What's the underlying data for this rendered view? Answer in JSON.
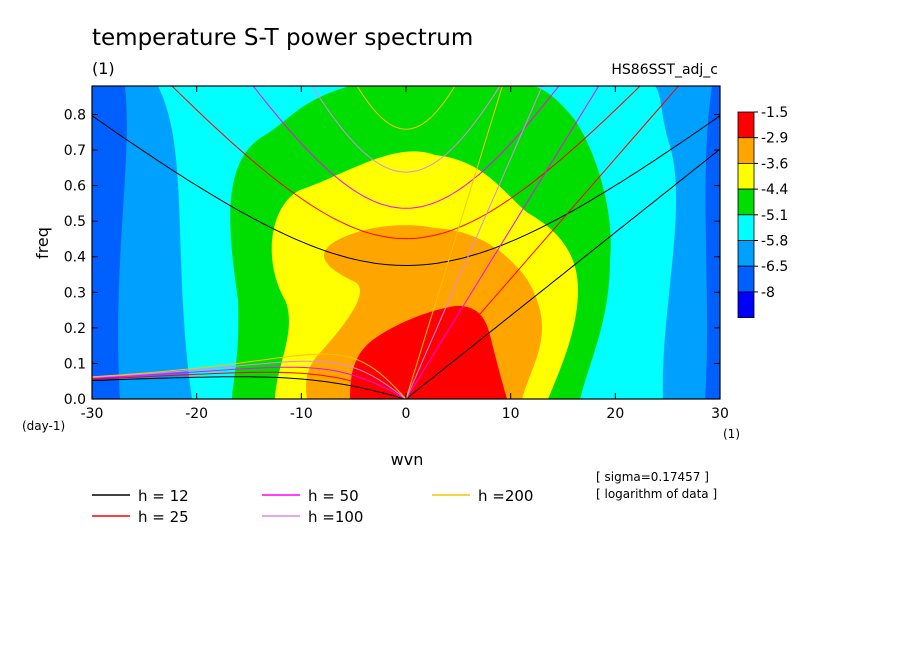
{
  "chart_data": {
    "type": "heatmap",
    "title": "temperature S-T power spectrum",
    "units_label": "(1)",
    "dataset_label": "HS86SST_adj_c",
    "xlabel": "wvn",
    "ylabel": "freq",
    "x_unit_label": "(1)",
    "y_unit_label": "(day-1)",
    "xlim": [
      -30,
      30
    ],
    "ylim": [
      0,
      0.88
    ],
    "x_ticks": [
      -30,
      -20,
      -10,
      0,
      10,
      20,
      30
    ],
    "y_ticks": [
      0.0,
      0.1,
      0.2,
      0.3,
      0.4,
      0.5,
      0.6,
      0.7,
      0.8
    ],
    "colorbar": {
      "labels": [
        "-1.5",
        "-2.9",
        "-3.6",
        "-4.4",
        "-5.1",
        "-5.8",
        "-6.5",
        "-8"
      ],
      "colors": [
        "#ff0000",
        "#ffa500",
        "#ffff00",
        "#00dd00",
        "#00ffff",
        "#00a0ff",
        "#0060ff",
        "#0000ff"
      ]
    },
    "notes": [
      "[ sigma=0.17457 ]",
      "[ logarithm of data ]"
    ],
    "dispersion_curves": [
      {
        "name": "h = 12",
        "h": 12,
        "color": "#000000"
      },
      {
        "name": "h = 25",
        "h": 25,
        "color": "#ff0000"
      },
      {
        "name": "h = 50",
        "h": 50,
        "color": "#ff00ff"
      },
      {
        "name": "h =100",
        "h": 100,
        "color": "#dd88ee"
      },
      {
        "name": "h =200",
        "h": 200,
        "color": "#ffc000"
      }
    ]
  }
}
